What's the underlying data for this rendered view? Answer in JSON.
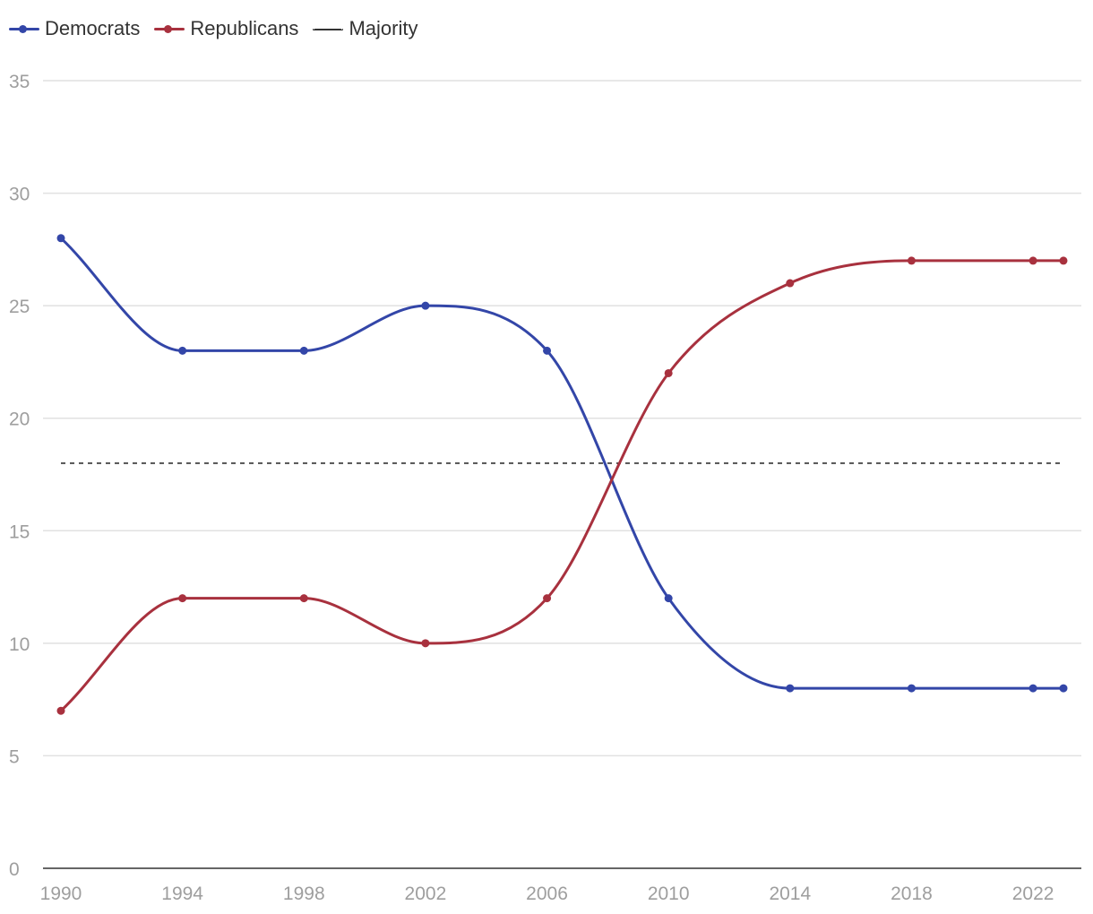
{
  "chart_data": {
    "type": "line",
    "title": "",
    "xlabel": "",
    "ylabel": "",
    "x": [
      1990,
      1994,
      1998,
      2002,
      2006,
      2010,
      2014,
      2018,
      2022,
      2023
    ],
    "x_tick_labels": [
      "1990",
      "1994",
      "1998",
      "2002",
      "2006",
      "2010",
      "2014",
      "2018",
      "2022"
    ],
    "y_tick_labels": [
      "0",
      "5",
      "10",
      "15",
      "20",
      "25",
      "30",
      "35"
    ],
    "ylim": [
      0,
      35
    ],
    "xlim": [
      1990,
      2023
    ],
    "grid": true,
    "legend_position": "top-left",
    "series": [
      {
        "name": "Democrats",
        "color": "#3346a8",
        "values": [
          28,
          23,
          23,
          25,
          23,
          12,
          8,
          8,
          8,
          8
        ]
      },
      {
        "name": "Republicans",
        "color": "#a8313e",
        "values": [
          7,
          12,
          12,
          10,
          12,
          22,
          26,
          27,
          27,
          27
        ]
      }
    ],
    "reference_line": {
      "name": "Majority",
      "value": 18,
      "style": "dashed",
      "color": "#333333"
    }
  }
}
